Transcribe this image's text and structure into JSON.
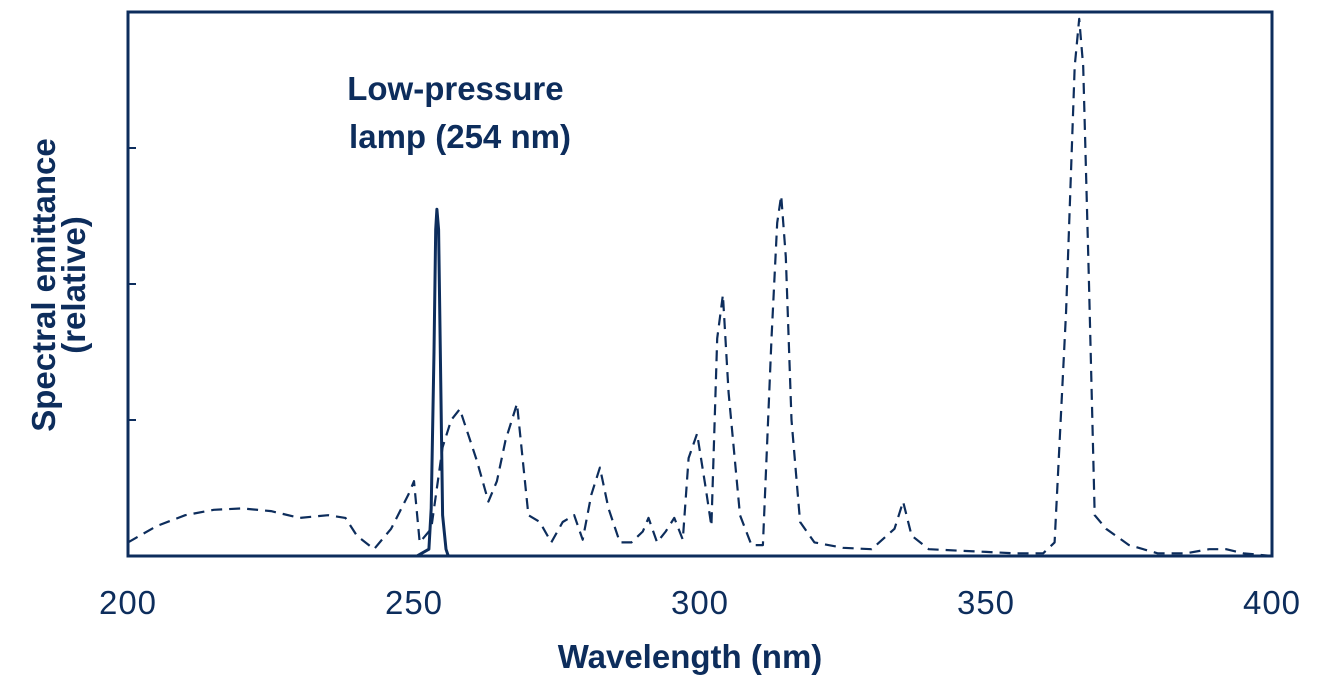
{
  "chart_data": {
    "type": "line",
    "xlabel": "Wavelength (nm)",
    "ylabel_lines": [
      "Spectral emittance",
      "(relative)"
    ],
    "xlim": [
      200,
      400
    ],
    "ylim": [
      0,
      4
    ],
    "x_ticks": [
      200,
      250,
      300,
      350,
      400
    ],
    "x_tick_labels": [
      "200",
      "250",
      "300",
      "350",
      "400"
    ],
    "y_ticks": [
      1,
      2,
      3
    ],
    "grid": false,
    "annotation_lines": [
      "Low-pressure",
      "lamp (254 nm)"
    ],
    "color": "#0d2d5c",
    "series": [
      {
        "style": "solid",
        "x": [
          250.5,
          252.6,
          253.0,
          253.5,
          253.8,
          254.0,
          254.3,
          254.7,
          255.0,
          255.6,
          256.0
        ],
        "y": [
          0.0,
          0.05,
          0.35,
          1.5,
          2.4,
          2.55,
          2.4,
          1.2,
          0.3,
          0.05,
          0.0
        ]
      },
      {
        "style": "dashed",
        "x": [
          200,
          205,
          210,
          215,
          220,
          225,
          230,
          235,
          238,
          240,
          243,
          246,
          249,
          250,
          251,
          253,
          255,
          256.5,
          258,
          261,
          263,
          264.5,
          266,
          268,
          270,
          272,
          274,
          276,
          278,
          279.5,
          281,
          282.5,
          284,
          286,
          288,
          290,
          291,
          292.5,
          294,
          295.5,
          297,
          298,
          299.5,
          301,
          302,
          303,
          304,
          305,
          307,
          309,
          311,
          312.5,
          313.5,
          314.2,
          315,
          316,
          317.5,
          320,
          325,
          330,
          334,
          335.5,
          337,
          340,
          345,
          350,
          355,
          360,
          362,
          364,
          365.5,
          366.3,
          367,
          368,
          369,
          371,
          375,
          380,
          385,
          389,
          390,
          392,
          395,
          400
        ],
        "y": [
          0.1,
          0.22,
          0.3,
          0.34,
          0.35,
          0.33,
          0.28,
          0.3,
          0.28,
          0.15,
          0.05,
          0.2,
          0.45,
          0.55,
          0.1,
          0.2,
          0.8,
          1.0,
          1.08,
          0.7,
          0.4,
          0.55,
          0.85,
          1.12,
          0.3,
          0.25,
          0.1,
          0.25,
          0.3,
          0.12,
          0.45,
          0.65,
          0.35,
          0.1,
          0.1,
          0.18,
          0.28,
          0.1,
          0.18,
          0.28,
          0.12,
          0.72,
          0.9,
          0.5,
          0.22,
          1.6,
          1.92,
          1.2,
          0.3,
          0.08,
          0.08,
          1.6,
          2.45,
          2.65,
          2.2,
          1.0,
          0.25,
          0.1,
          0.06,
          0.05,
          0.2,
          0.4,
          0.15,
          0.05,
          0.04,
          0.03,
          0.02,
          0.02,
          0.1,
          1.8,
          3.6,
          3.95,
          3.6,
          2.0,
          0.3,
          0.2,
          0.08,
          0.02,
          0.02,
          0.05,
          0.05,
          0.05,
          0.02,
          0.0
        ]
      }
    ]
  }
}
